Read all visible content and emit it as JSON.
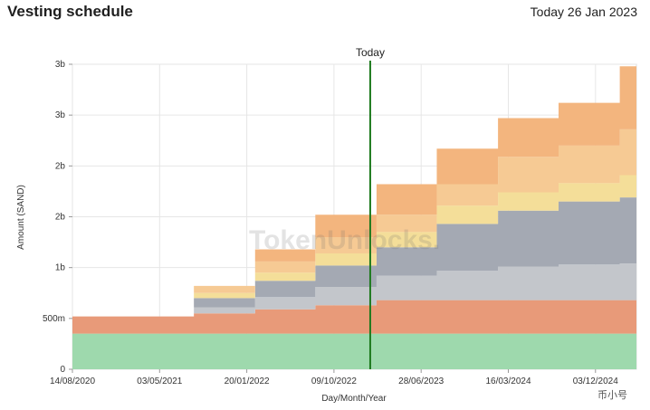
{
  "header": {
    "title": "Vesting schedule",
    "today_label": "Today 26 Jan 2023"
  },
  "watermark": "TokenUnlocks.",
  "corner_brand": "币小号",
  "chart_data": {
    "type": "area",
    "title": "Vesting schedule",
    "xlabel": "Day/Month/Year",
    "ylabel": "Amount (SAND)",
    "x_ticks": [
      "14/08/2020",
      "03/05/2021",
      "20/01/2022",
      "09/10/2022",
      "28/06/2023",
      "16/03/2024",
      "03/12/2024"
    ],
    "y_tick_labels": [
      "0",
      "500m",
      "1b",
      "2b",
      "2b",
      "3b",
      "3b"
    ],
    "y_tick_values": [
      0,
      500,
      1000,
      1500,
      2000,
      2500,
      3000
    ],
    "ylim": [
      0,
      3000
    ],
    "x_range": [
      "14/08/2020",
      "05/04/2025"
    ],
    "grid": true,
    "step_dates": [
      "14/08/2020",
      "14/05/2021",
      "14/08/2021",
      "14/11/2021",
      "14/02/2022",
      "14/05/2022",
      "14/08/2022",
      "14/11/2022",
      "14/02/2023",
      "14/05/2023",
      "14/08/2023",
      "14/11/2023",
      "14/02/2024",
      "14/05/2024",
      "14/08/2024",
      "14/11/2024",
      "14/02/2025"
    ],
    "series": [
      {
        "color": "#9ed9ad",
        "values": [
          350,
          350,
          350,
          350,
          350,
          350,
          350,
          350,
          350,
          350,
          350,
          350,
          350,
          350,
          350,
          350,
          350
        ]
      },
      {
        "color": "#e89a79",
        "values": [
          170,
          170,
          200,
          200,
          240,
          240,
          280,
          280,
          330,
          330,
          330,
          330,
          330,
          330,
          330,
          330,
          330
        ]
      },
      {
        "color": "#c3c6cb",
        "values": [
          0,
          0,
          60,
          60,
          120,
          120,
          180,
          180,
          240,
          240,
          290,
          290,
          330,
          330,
          350,
          350,
          360
        ]
      },
      {
        "color": "#a4a9b3",
        "values": [
          0,
          0,
          90,
          90,
          160,
          160,
          210,
          210,
          280,
          280,
          460,
          460,
          550,
          550,
          620,
          620,
          650
        ]
      },
      {
        "color": "#f4de99",
        "values": [
          0,
          0,
          50,
          50,
          80,
          80,
          120,
          120,
          150,
          150,
          180,
          180,
          180,
          180,
          180,
          180,
          220
        ]
      },
      {
        "color": "#f6ca94",
        "values": [
          0,
          0,
          70,
          70,
          110,
          110,
          160,
          160,
          170,
          170,
          210,
          210,
          350,
          350,
          370,
          370,
          450
        ]
      },
      {
        "color": "#f3b57e",
        "values": [
          0,
          0,
          0,
          0,
          120,
          120,
          220,
          220,
          300,
          300,
          350,
          350,
          380,
          380,
          420,
          420,
          620
        ]
      }
    ],
    "today_marker": {
      "label": "Today",
      "date": "26/01/2023",
      "color": "#1e7a1e"
    }
  }
}
